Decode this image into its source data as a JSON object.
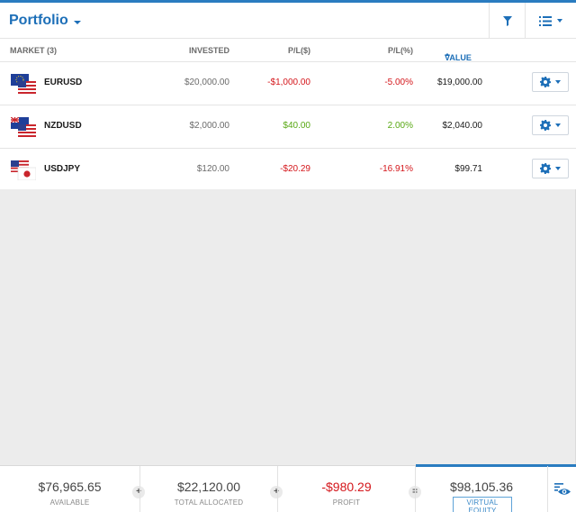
{
  "colors": {
    "accent": "#1d6fb8",
    "negative": "#d4161b",
    "positive": "#58a813"
  },
  "header": {
    "title": "Portfolio",
    "filter_icon": "filter-icon",
    "list_icon": "list-view-icon"
  },
  "columns": {
    "market": "MARKET (3)",
    "invested": "INVESTED",
    "pl": "P/L($)",
    "pl_pct": "P/L(%)",
    "value": "VALUE"
  },
  "rows": [
    {
      "symbol": "EURUSD",
      "flags": [
        "eu-flag",
        "us-flag"
      ],
      "invested": "$20,000.00",
      "pl": "-$1,000.00",
      "pl_pct": "-5.00%",
      "value": "$19,000.00",
      "trend": "negative"
    },
    {
      "symbol": "NZDUSD",
      "flags": [
        "nz-flag",
        "us-flag"
      ],
      "invested": "$2,000.00",
      "pl": "$40.00",
      "pl_pct": "2.00%",
      "value": "$2,040.00",
      "trend": "positive"
    },
    {
      "symbol": "USDJPY",
      "flags": [
        "us-flag",
        "jp-flag"
      ],
      "invested": "$120.00",
      "pl": "-$20.29",
      "pl_pct": "-16.91%",
      "value": "$99.71",
      "trend": "negative"
    }
  ],
  "footer": {
    "available": {
      "value": "$76,965.65",
      "label": "AVAILABLE"
    },
    "allocated": {
      "value": "$22,120.00",
      "label": "TOTAL ALLOCATED"
    },
    "profit": {
      "value": "-$980.29",
      "label": "PROFIT"
    },
    "equity": {
      "value": "$98,105.36",
      "label": "VIRTUAL EQUITY"
    },
    "op_plus": "+",
    "op_equals": "="
  }
}
